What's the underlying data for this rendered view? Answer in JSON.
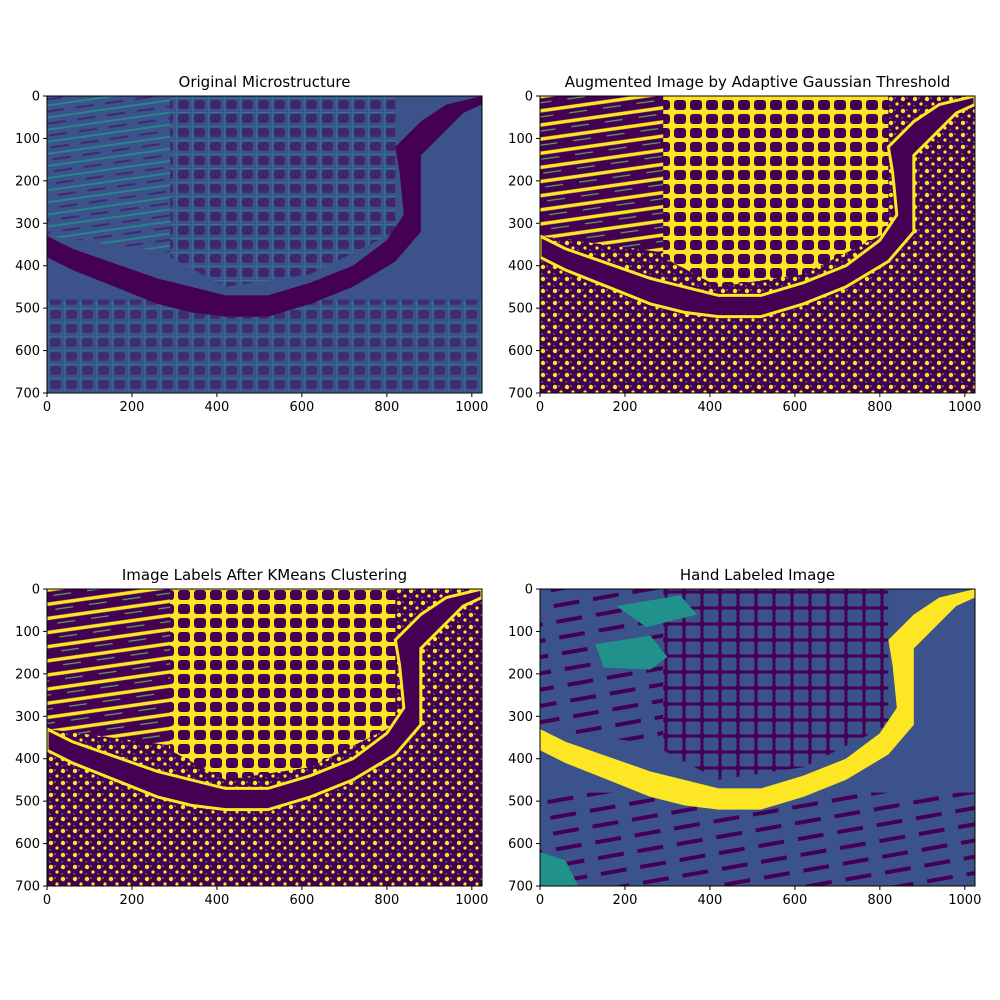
{
  "figure": {
    "background": "#ffffff"
  },
  "colormap": {
    "name": "viridis",
    "dark": "#440154",
    "mid_dark": "#3b528b",
    "mid": "#21918c",
    "light": "#5ec962",
    "bright": "#fde725"
  },
  "chart_data": [
    {
      "type": "heatmap",
      "title": "Original Microstructure",
      "xlim": [
        0,
        1024
      ],
      "ylim": [
        700,
        0
      ],
      "xticks": [
        0,
        200,
        400,
        600,
        800,
        1000
      ],
      "yticks": [
        0,
        100,
        200,
        300,
        400,
        500,
        600,
        700
      ],
      "grid": false,
      "colormap": "viridis",
      "rendering": "continuous"
    },
    {
      "type": "heatmap",
      "title": "Augmented Image by Adaptive Gaussian Threshold",
      "xlim": [
        0,
        1024
      ],
      "ylim": [
        700,
        0
      ],
      "xticks": [
        0,
        200,
        400,
        600,
        800,
        1000
      ],
      "yticks": [
        0,
        100,
        200,
        300,
        400,
        500,
        600,
        700
      ],
      "grid": false,
      "colormap": "viridis",
      "rendering": "binary"
    },
    {
      "type": "heatmap",
      "title": "Image Labels After KMeans Clustering",
      "xlim": [
        0,
        1024
      ],
      "ylim": [
        700,
        0
      ],
      "xticks": [
        0,
        200,
        400,
        600,
        800,
        1000
      ],
      "yticks": [
        0,
        100,
        200,
        300,
        400,
        500,
        600,
        700
      ],
      "grid": false,
      "colormap": "viridis",
      "rendering": "binary"
    },
    {
      "type": "heatmap",
      "title": "Hand Labeled Image",
      "xlim": [
        0,
        1024
      ],
      "ylim": [
        700,
        0
      ],
      "xticks": [
        0,
        200,
        400,
        600,
        800,
        1000
      ],
      "yticks": [
        0,
        100,
        200,
        300,
        400,
        500,
        600,
        700
      ],
      "grid": false,
      "colormap": "viridis",
      "rendering": "labels"
    }
  ]
}
